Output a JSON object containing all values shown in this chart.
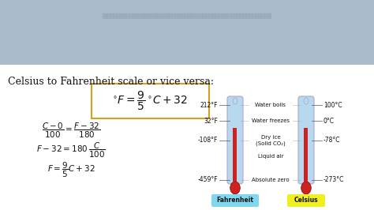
{
  "title_text": "Celsius to Fahrenheit scale or vice versa:",
  "main_formula": "$^{\\circ}F = \\dfrac{9}{5}\\,^{\\circ}C + 32$",
  "deriv_lines": [
    "$\\dfrac{C - 0}{100} = \\dfrac{F - 32}{180}$",
    "$F - 32 = 180\\,\\dfrac{C}{100}$",
    "$F = \\dfrac{9}{5}C + 32$"
  ],
  "thermo_labels_left": [
    "212°F",
    "32°F",
    "-108°F",
    "-459°F"
  ],
  "thermo_labels_right": [
    "100°C",
    "0°C",
    "-78°C",
    "-273°C"
  ],
  "thermo_events": [
    "Water boils",
    "Water freezes",
    "Dry ice\n(Solid CO₂)",
    "Liquid air",
    "Absolute zero"
  ],
  "fahrenheit_label": "Fahrenheit",
  "celsius_label": "Celsius",
  "bg_color": "#f5f5f0",
  "photo_color": "#aabbcc",
  "box_color": "#d4a020",
  "thermo_body_color": "#b8d8f0",
  "thermo_mercury_color": "#cc2222",
  "fahrenheit_badge": "#80d8f0",
  "celsius_badge": "#f0f020",
  "text_color": "#111111"
}
